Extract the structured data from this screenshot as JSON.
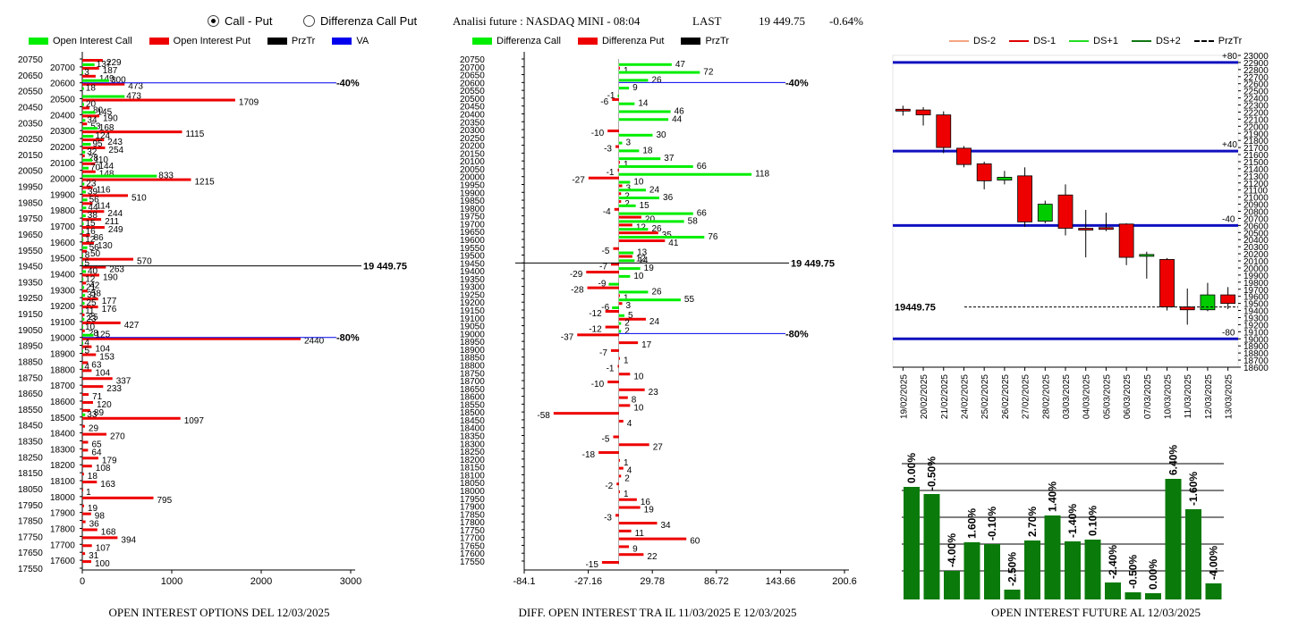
{
  "header": {
    "radio_call_put": "Call - Put",
    "radio_diff": "Differenza Call Put",
    "radio_selected": "call_put",
    "title": "Analisi future : NASDAQ MINI - 08:04",
    "last_label": "LAST",
    "last_value": "19 449.75",
    "last_change": "-0.64%"
  },
  "colors": {
    "call": "#00ee00",
    "put": "#ee0000",
    "prztr": "#000000",
    "va": "#0000ee",
    "ds_minus2": "#f4a582",
    "ds_minus1": "#dd0000",
    "ds_plus1": "#22dd22",
    "ds_plus2": "#117711",
    "up": "#00cc00",
    "down": "#ee0000",
    "bar": "#0a7a0a"
  },
  "legend_left": [
    "Open Interest Call",
    "Open Interest Put",
    "PrzTr",
    "VA"
  ],
  "legend_mid": [
    "Differenza Call",
    "Differenza Put",
    "PrzTr"
  ],
  "legend_right": [
    "DS-2",
    "DS-1",
    "DS+1",
    "DS+2",
    "PrzTr"
  ],
  "footers": {
    "left": "OPEN INTEREST OPTIONS DEL 12/03/2025",
    "mid": "DIFF. OPEN INTEREST TRA IL 11/03/2025 E 12/03/2025",
    "right": "OPEN INTEREST FUTURE AL 12/03/2025"
  },
  "chart_data": [
    {
      "type": "bar",
      "orientation": "horizontal",
      "strikes": [
        20750,
        20700,
        20650,
        20600,
        20550,
        20500,
        20450,
        20400,
        20350,
        20300,
        20250,
        20200,
        20150,
        20100,
        20050,
        20000,
        19950,
        19900,
        19850,
        19800,
        19750,
        19700,
        19650,
        19600,
        19550,
        19500,
        19450,
        19400,
        19350,
        19300,
        19250,
        19200,
        19150,
        19100,
        19050,
        19000,
        18950,
        18900,
        18850,
        18800,
        18750,
        18700,
        18650,
        18600,
        18550,
        18500,
        18450,
        18400,
        18350,
        18300,
        18250,
        18200,
        18150,
        18100,
        18050,
        18000,
        17950,
        17900,
        17850,
        17800,
        17750,
        17700,
        17650,
        17600,
        17550
      ],
      "series": [
        {
          "name": "Open Interest Call",
          "values": [
            0,
            137,
            3,
            300,
            18,
            473,
            20,
            145,
            34,
            168,
            124,
            95,
            32,
            110,
            70,
            833,
            23,
            39,
            56,
            44,
            38,
            15,
            16,
            12,
            56,
            8,
            5,
            40,
            12,
            21,
            31,
            25,
            11,
            23,
            10,
            125,
            4,
            5,
            0,
            4,
            0,
            0,
            0,
            0,
            0,
            33,
            0,
            0,
            0,
            0,
            0,
            0,
            0,
            0,
            0,
            0,
            0,
            0,
            0,
            0,
            0,
            0,
            0,
            0,
            0
          ]
        },
        {
          "name": "Open Interest Put",
          "values": [
            229,
            187,
            149,
            473,
            0,
            1709,
            80,
            190,
            53,
            1115,
            243,
            254,
            28,
            144,
            148,
            1215,
            116,
            510,
            114,
            244,
            211,
            249,
            86,
            130,
            50,
            570,
            263,
            190,
            42,
            58,
            177,
            176,
            25,
            427,
            28,
            2440,
            104,
            153,
            63,
            104,
            337,
            233,
            71,
            120,
            89,
            1097,
            29,
            270,
            65,
            64,
            179,
            108,
            18,
            163,
            1,
            795,
            19,
            98,
            36,
            168,
            394,
            107,
            31,
            100,
            0
          ]
        }
      ],
      "prztr": 19449.75,
      "prztr_label": "19 449.75",
      "va_lines": [
        {
          "strike": 20600,
          "label": "-40%"
        },
        {
          "strike": 19000,
          "label": "-80%"
        }
      ],
      "xlim": [
        0,
        3000
      ],
      "xticks": [
        0,
        1000,
        2000,
        3000
      ]
    },
    {
      "type": "bar",
      "orientation": "horizontal",
      "strikes": [
        20750,
        20700,
        20650,
        20600,
        20550,
        20500,
        20450,
        20400,
        20350,
        20300,
        20250,
        20200,
        20150,
        20100,
        20050,
        20000,
        19950,
        19900,
        19850,
        19800,
        19750,
        19700,
        19650,
        19600,
        19550,
        19500,
        19450,
        19400,
        19350,
        19300,
        19250,
        19200,
        19150,
        19100,
        19050,
        19000,
        18950,
        18900,
        18850,
        18800,
        18750,
        18700,
        18650,
        18600,
        18550,
        18500,
        18450,
        18400,
        18350,
        18300,
        18250,
        18200,
        18150,
        18100,
        18050,
        18000,
        17950,
        17900,
        17850,
        17800,
        17750,
        17700,
        17650,
        17600,
        17550
      ],
      "series": [
        {
          "name": "Differenza Call",
          "values": [
            0,
            47,
            72,
            26,
            9,
            -1,
            14,
            46,
            44,
            0,
            30,
            3,
            18,
            37,
            66,
            118,
            10,
            24,
            36,
            15,
            66,
            58,
            26,
            76,
            0,
            13,
            14,
            19,
            10,
            -9,
            26,
            55,
            -6,
            5,
            2,
            2,
            0,
            0,
            0,
            0,
            0,
            0,
            0,
            0,
            0,
            0,
            0,
            0,
            0,
            0,
            0,
            0,
            0,
            0,
            0,
            0,
            0,
            0,
            0,
            0,
            0,
            0,
            0,
            0,
            0
          ]
        },
        {
          "name": "Differenza Put",
          "values": [
            0,
            1,
            0,
            0,
            0,
            -6,
            0,
            0,
            0,
            -10,
            0,
            -3,
            0,
            1,
            -1,
            -27,
            3,
            2,
            2,
            -4,
            20,
            12,
            35,
            41,
            -5,
            12,
            -7,
            -29,
            0,
            -28,
            1,
            3,
            -12,
            24,
            -12,
            -37,
            17,
            -7,
            1,
            -1,
            10,
            -10,
            23,
            8,
            10,
            -58,
            4,
            0,
            -5,
            27,
            -18,
            1,
            4,
            2,
            -2,
            1,
            16,
            19,
            -3,
            34,
            11,
            60,
            9,
            22,
            -15
          ]
        }
      ],
      "prztr": 19449.75,
      "prztr_label": "19 449.75",
      "va_lines": [
        {
          "strike": 20600,
          "label": "-40%"
        },
        {
          "strike": 19000,
          "label": "-80%"
        }
      ],
      "xlim": [
        -84.1,
        200.6
      ],
      "xticks": [
        "-84.1",
        "-27.16",
        "29.78",
        "86.72",
        "143.66",
        "200.6"
      ]
    },
    {
      "type": "candlestick",
      "dates": [
        "19/02/2025",
        "20/02/2025",
        "21/02/2025",
        "24/02/2025",
        "25/02/2025",
        "26/02/2025",
        "27/02/2025",
        "28/02/2025",
        "03/03/2025",
        "04/03/2025",
        "05/03/2025",
        "06/03/2025",
        "07/03/2025",
        "10/03/2025",
        "11/03/2025",
        "12/03/2025",
        "13/03/2025"
      ],
      "ohlc": [
        [
          22240,
          22290,
          22150,
          22230
        ],
        [
          22230,
          22270,
          22010,
          22160
        ],
        [
          22160,
          22210,
          21620,
          21700
        ],
        [
          21690,
          21720,
          21420,
          21460
        ],
        [
          21470,
          21500,
          21110,
          21230
        ],
        [
          21240,
          21370,
          21180,
          21280
        ],
        [
          21300,
          21420,
          20580,
          20650
        ],
        [
          20660,
          20950,
          20630,
          20900
        ],
        [
          21030,
          21180,
          20460,
          20560
        ],
        [
          20560,
          20820,
          20150,
          20550
        ],
        [
          20570,
          20780,
          20520,
          20560
        ],
        [
          20620,
          20630,
          20040,
          20150
        ],
        [
          20180,
          20230,
          19850,
          20190
        ],
        [
          20120,
          20140,
          19400,
          19450
        ],
        [
          19450,
          19710,
          19200,
          19410
        ],
        [
          19410,
          19790,
          19390,
          19620
        ],
        [
          19620,
          19730,
          19420,
          19500
        ]
      ],
      "prztr": 19449.75,
      "prztr_label": "19449.75",
      "ds_lines": [
        {
          "value": 22900,
          "label": "+80"
        },
        {
          "value": 21650,
          "label": "+40"
        },
        {
          "value": 20600,
          "label": "-40"
        },
        {
          "value": 19000,
          "label": "-80"
        }
      ],
      "ylim": [
        18600,
        23000
      ],
      "yticks": [
        18600,
        18700,
        18800,
        18900,
        19000,
        19100,
        19200,
        19300,
        19400,
        19500,
        19600,
        19700,
        19800,
        19900,
        20000,
        20100,
        20200,
        20300,
        20400,
        20500,
        20600,
        20700,
        20800,
        20900,
        21000,
        21100,
        21200,
        21300,
        21400,
        21500,
        21600,
        21700,
        21800,
        21900,
        22000,
        22100,
        22200,
        22300,
        22400,
        22500,
        22600,
        22700,
        22800,
        22900,
        23000
      ]
    },
    {
      "type": "bar",
      "values": [
        0.0,
        -0.5,
        -4.0,
        1.6,
        -0.1,
        -2.5,
        2.7,
        1.4,
        -1.4,
        0.1,
        -2.4,
        -0.5,
        0.0,
        6.4,
        -1.6,
        -4.0
      ],
      "labels": [
        "0.00%",
        "-0.50%",
        "-4.00%",
        "1.60%",
        "-0.10%",
        "-2.50%",
        "2.70%",
        "1.40%",
        "-1.40%",
        "0.10%",
        "-2.40%",
        "-0.50%",
        "0.00%",
        "6.40%",
        "-1.60%",
        "-4.00%"
      ],
      "heights": [
        126,
        118,
        32,
        64,
        62,
        11,
        66,
        94,
        65,
        67,
        19,
        8,
        7,
        135,
        101,
        18
      ]
    }
  ]
}
